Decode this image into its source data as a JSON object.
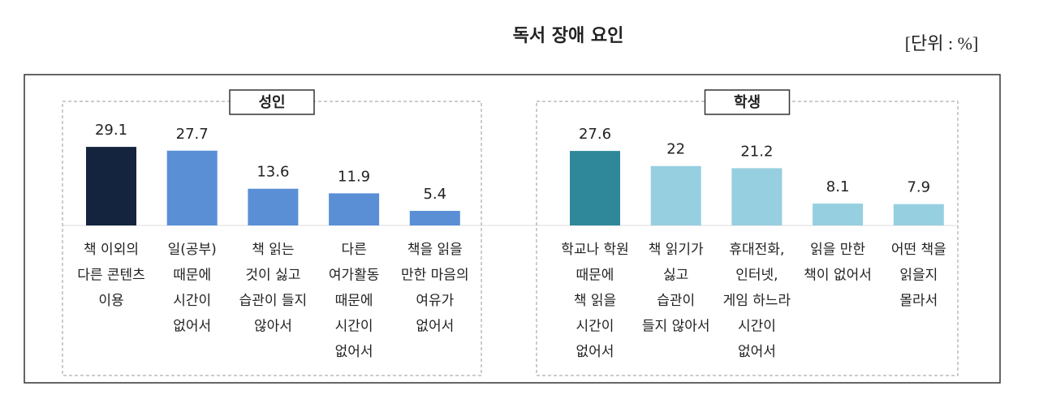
{
  "title": "독서 장애 요인",
  "unit": "[단위 : %]",
  "chart_data": [
    {
      "type": "bar",
      "title": "성인",
      "categories": [
        [
          "책 이외의",
          "다른 콘텐츠",
          "이용"
        ],
        [
          "일(공부)",
          "때문에",
          "시간이",
          "없어서"
        ],
        [
          "책 읽는",
          "것이 싫고",
          "습관이 들지",
          "않아서"
        ],
        [
          "다른",
          "여가활동",
          "때문에",
          "시간이",
          "없어서"
        ],
        [
          "책을 읽을",
          "만한 마음의",
          "여유가",
          "없어서"
        ]
      ],
      "values": [
        29.1,
        27.7,
        13.6,
        11.9,
        5.4
      ],
      "colors": [
        "#14243f",
        "#5a8fd6",
        "#5a8fd6",
        "#5a8fd6",
        "#5a8fd6"
      ]
    },
    {
      "type": "bar",
      "title": "학생",
      "categories": [
        [
          "학교나 학원",
          "때문에",
          "책 읽을",
          "시간이",
          "없어서"
        ],
        [
          "책 읽기가",
          "싫고",
          "습관이",
          "들지 않아서"
        ],
        [
          "휴대전화,",
          "인터넷,",
          "게임 하느라",
          "시간이",
          "없어서"
        ],
        [
          "읽을 만한",
          "책이 없어서"
        ],
        [
          "어떤 책을",
          "읽을지",
          "몰라서"
        ]
      ],
      "values": [
        27.6,
        22.0,
        21.2,
        8.1,
        7.9
      ],
      "colors": [
        "#2f8899",
        "#96cfe0",
        "#96cfe0",
        "#96cfe0",
        "#96cfe0"
      ]
    }
  ]
}
